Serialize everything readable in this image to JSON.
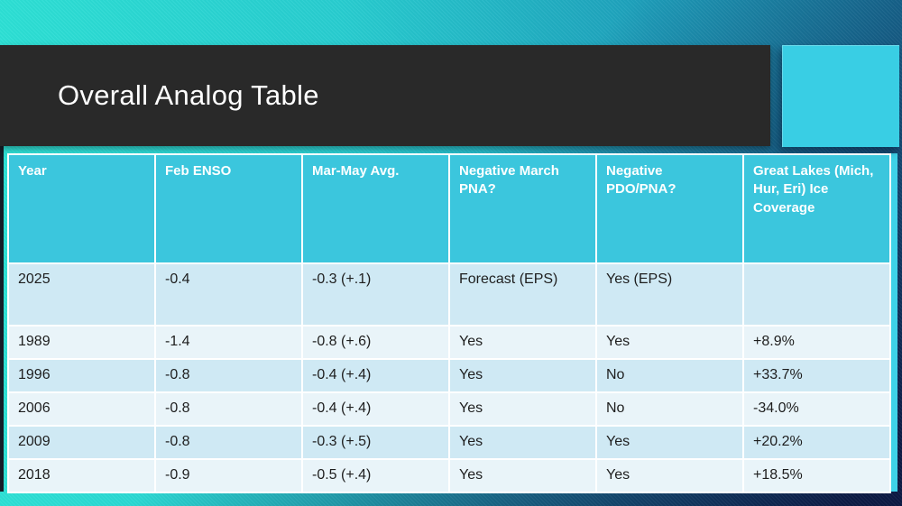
{
  "slide": {
    "title": "Overall Analog Table"
  },
  "table": {
    "columns": [
      "Year",
      "Feb ENSO",
      "Mar-May Avg.",
      "Negative March PNA?",
      "Negative PDO/PNA?",
      "Great Lakes (Mich, Hur, Eri) Ice Coverage"
    ],
    "rows": [
      [
        "2025",
        "-0.4",
        "-0.3 (+.1)",
        "Forecast (EPS)",
        "Yes (EPS)",
        ""
      ],
      [
        "1989",
        "-1.4",
        "-0.8 (+.6)",
        "Yes",
        "Yes",
        "+8.9%"
      ],
      [
        "1996",
        "-0.8",
        "-0.4 (+.4)",
        "Yes",
        "No",
        "+33.7%"
      ],
      [
        "2006",
        "-0.8",
        "-0.4 (+.4)",
        "Yes",
        "No",
        "-34.0%"
      ],
      [
        "2009",
        "-0.8",
        "-0.3 (+.5)",
        "Yes",
        "Yes",
        "+20.2%"
      ],
      [
        "2018",
        "-0.9",
        "-0.5 (+.4)",
        "Yes",
        "Yes",
        "+18.5%"
      ]
    ]
  },
  "colors": {
    "accent_square": "#39cee4",
    "table_header_fill": "#3bc6dd",
    "row_fill_dark": "#cfe9f4",
    "row_fill_light": "#e9f4f9",
    "title_bar": "#292929",
    "title_text": "#ffffff",
    "background_turquoise": "#2de0d5",
    "background_navy": "#0e1a48",
    "right_accent_strip": "#3ed2e8",
    "left_edge_strip": "#141d27"
  }
}
